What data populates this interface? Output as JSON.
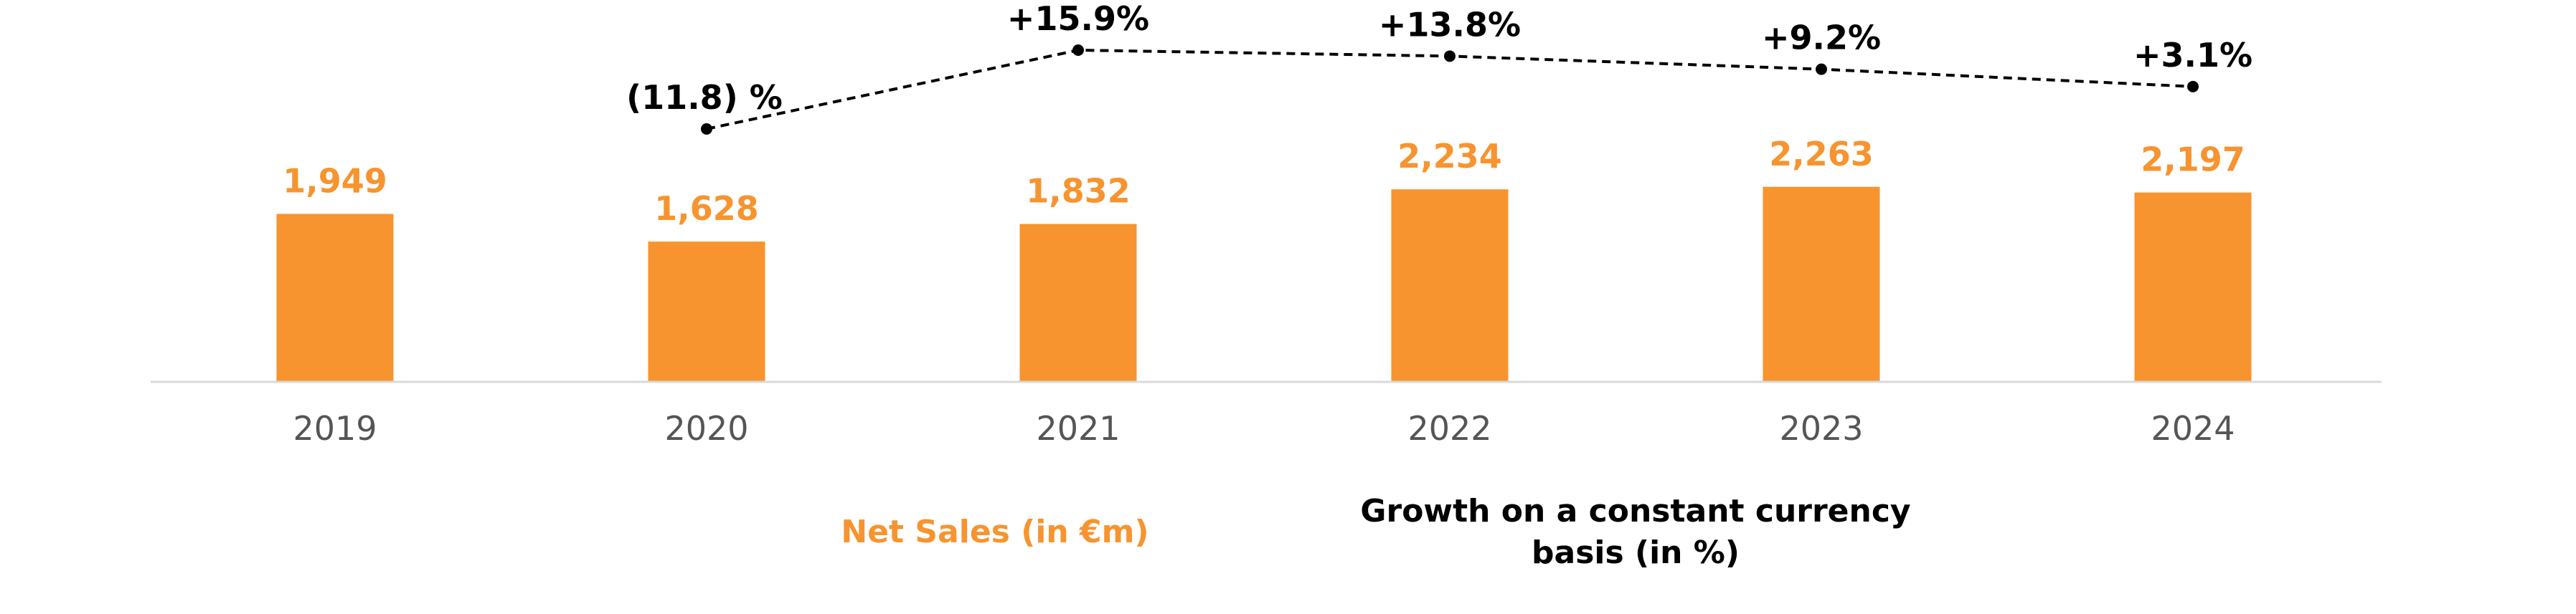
{
  "chart_data": {
    "type": "bar",
    "categories": [
      "2019",
      "2020",
      "2021",
      "2022",
      "2023",
      "2024"
    ],
    "series": [
      {
        "name": "Net Sales (in €m)",
        "type": "bar",
        "values": [
          1949,
          1628,
          1832,
          2234,
          2263,
          2197
        ],
        "labels": [
          "1,949",
          "1,628",
          "1,832",
          "2,234",
          "2,263",
          "2,197"
        ],
        "color": "#F7942F"
      },
      {
        "name": "Growth on a constant currency basis (in %)",
        "type": "line",
        "values": [
          null,
          -11.8,
          15.9,
          13.8,
          9.2,
          3.1
        ],
        "labels": [
          "",
          "(11.8) %",
          "+15.9%",
          "+13.8%",
          "+9.2%",
          "+3.1%"
        ],
        "color": "#000000",
        "line_style": "dashed"
      }
    ],
    "legend": {
      "sales_label": "Net Sales (in €m)",
      "growth_label_line1": "Growth on a constant currency",
      "growth_label_line2": "basis (in %)",
      "placement": "bottom"
    },
    "title": "",
    "xlabel": "",
    "ylabel": "",
    "ylim": [
      0,
      2400
    ],
    "grid": false
  }
}
